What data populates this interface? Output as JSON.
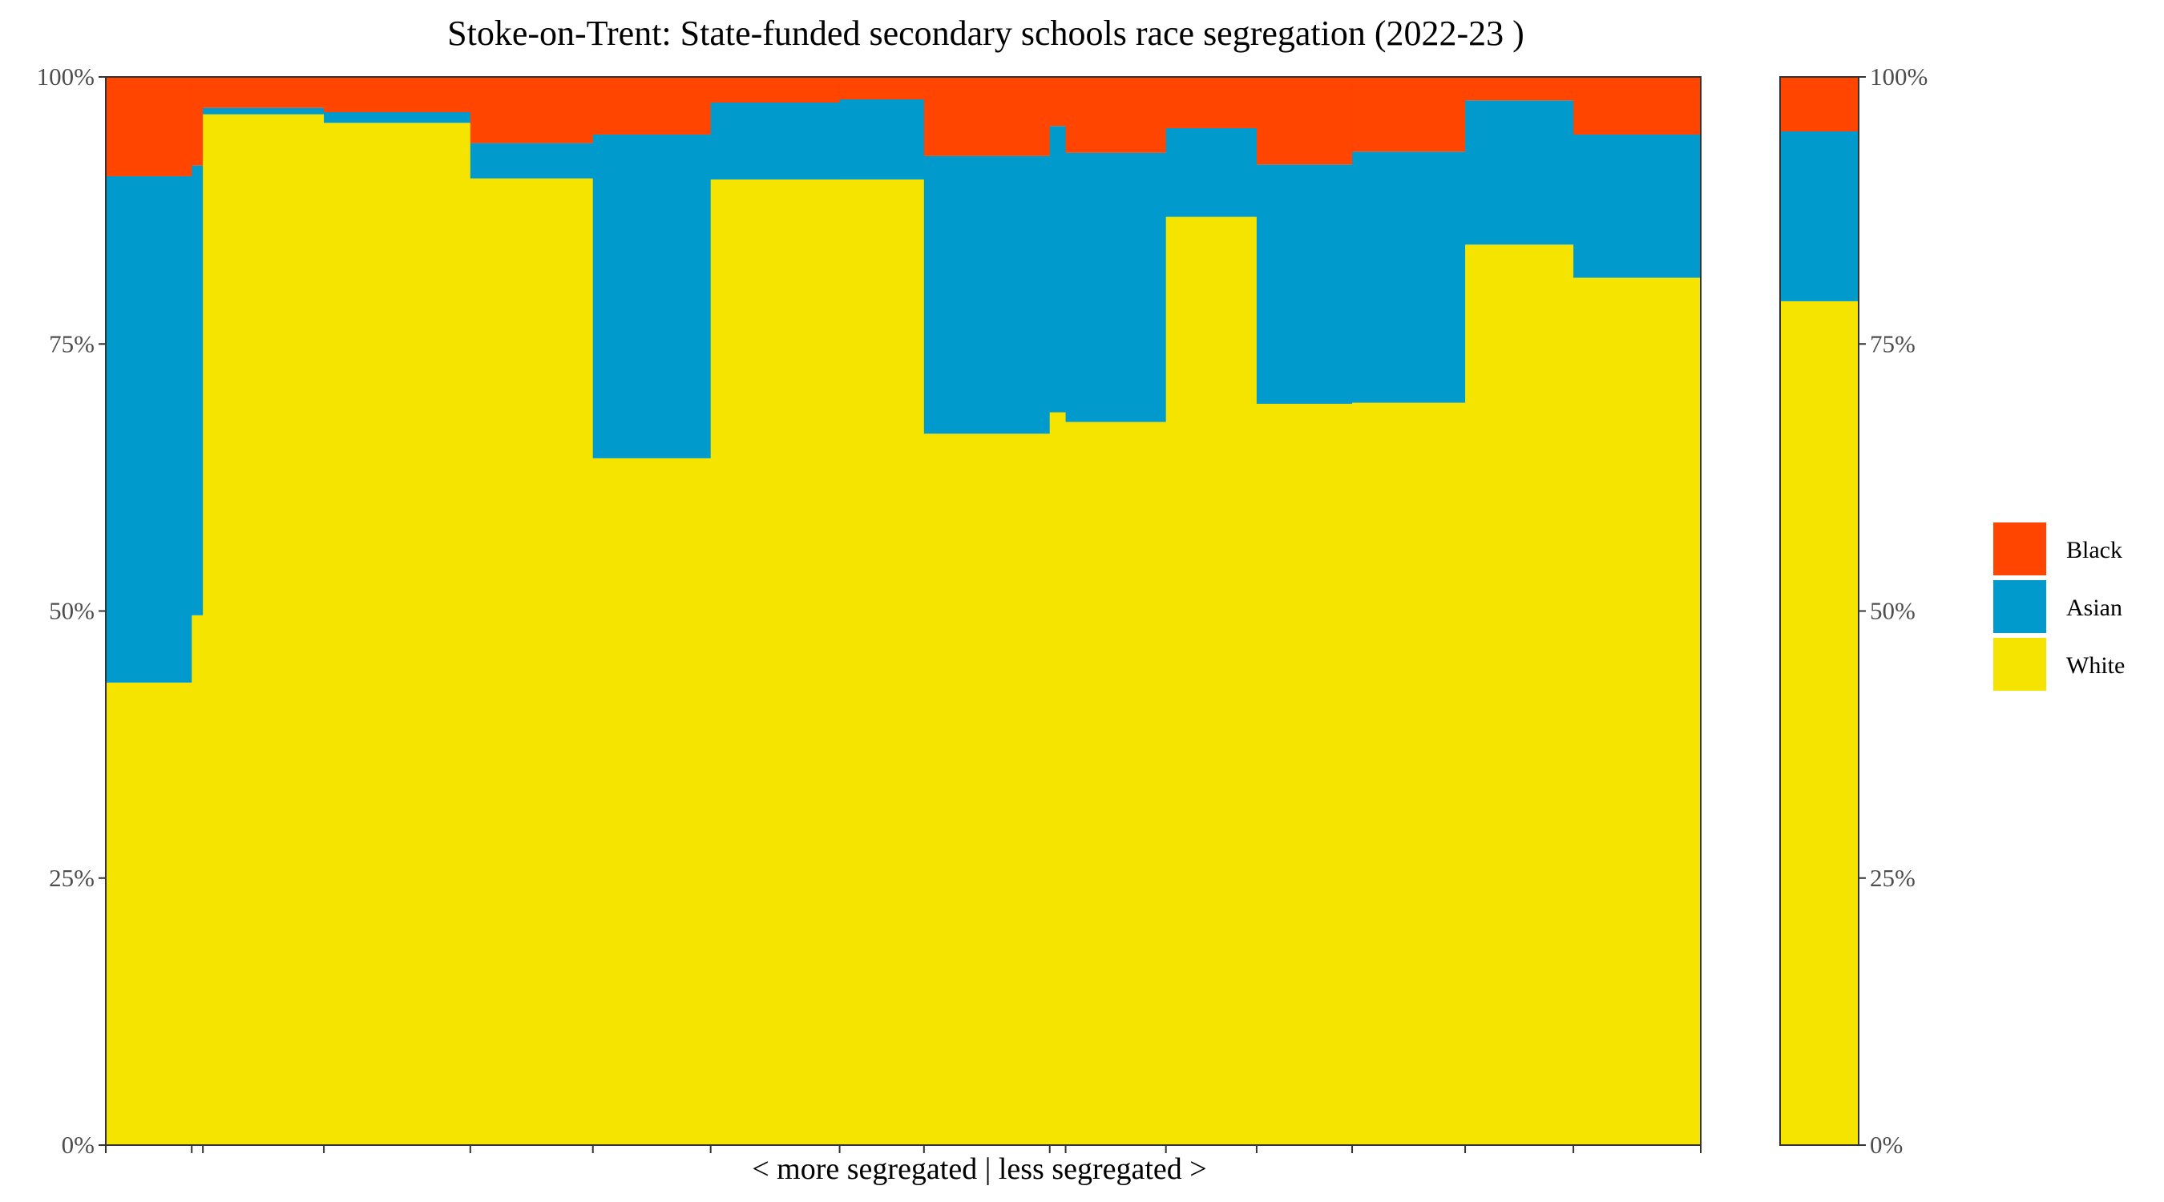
{
  "chart_data": {
    "type": "bar",
    "subtype": "stacked-variable-width",
    "title": "Stoke-on-Trent: State-funded secondary schools race segregation (2022-23 )",
    "xlabel": "< more segregated | less segregated >",
    "ylabel": "",
    "ylim": [
      0,
      1
    ],
    "yticks": [
      "0%",
      "25%",
      "50%",
      "75%",
      "100%"
    ],
    "secondary_y_axis": true,
    "legend_position": "right",
    "grid": false,
    "series": [
      {
        "name": "Black",
        "color": "#FF4500"
      },
      {
        "name": "Asian",
        "color": "#009ACD"
      },
      {
        "name": "White",
        "color": "#F5E400"
      }
    ],
    "schools": [
      {
        "width": 0.054,
        "white": 0.433,
        "asian": 0.474,
        "black": 0.093
      },
      {
        "width": 0.007,
        "white": 0.496,
        "asian": 0.421,
        "black": 0.083
      },
      {
        "width": 0.076,
        "white": 0.965,
        "asian": 0.006,
        "black": 0.029
      },
      {
        "width": 0.092,
        "white": 0.957,
        "asian": 0.01,
        "black": 0.033
      },
      {
        "width": 0.077,
        "white": 0.905,
        "asian": 0.033,
        "black": 0.062
      },
      {
        "width": 0.074,
        "white": 0.643,
        "asian": 0.303,
        "black": 0.054
      },
      {
        "width": 0.081,
        "white": 0.904,
        "asian": 0.072,
        "black": 0.024
      },
      {
        "width": 0.053,
        "white": 0.904,
        "asian": 0.075,
        "black": 0.021
      },
      {
        "width": 0.079,
        "white": 0.666,
        "asian": 0.26,
        "black": 0.074
      },
      {
        "width": 0.01,
        "white": 0.686,
        "asian": 0.268,
        "black": 0.046
      },
      {
        "width": 0.063,
        "white": 0.677,
        "asian": 0.252,
        "black": 0.071
      },
      {
        "width": 0.057,
        "white": 0.869,
        "asian": 0.083,
        "black": 0.048
      },
      {
        "width": 0.06,
        "white": 0.694,
        "asian": 0.224,
        "black": 0.082
      },
      {
        "width": 0.071,
        "white": 0.695,
        "asian": 0.235,
        "black": 0.07
      },
      {
        "width": 0.068,
        "white": 0.843,
        "asian": 0.135,
        "black": 0.022
      },
      {
        "width": 0.08,
        "white": 0.812,
        "asian": 0.134,
        "black": 0.054
      }
    ],
    "overall": {
      "white": 0.79,
      "asian": 0.159,
      "black": 0.051
    }
  }
}
